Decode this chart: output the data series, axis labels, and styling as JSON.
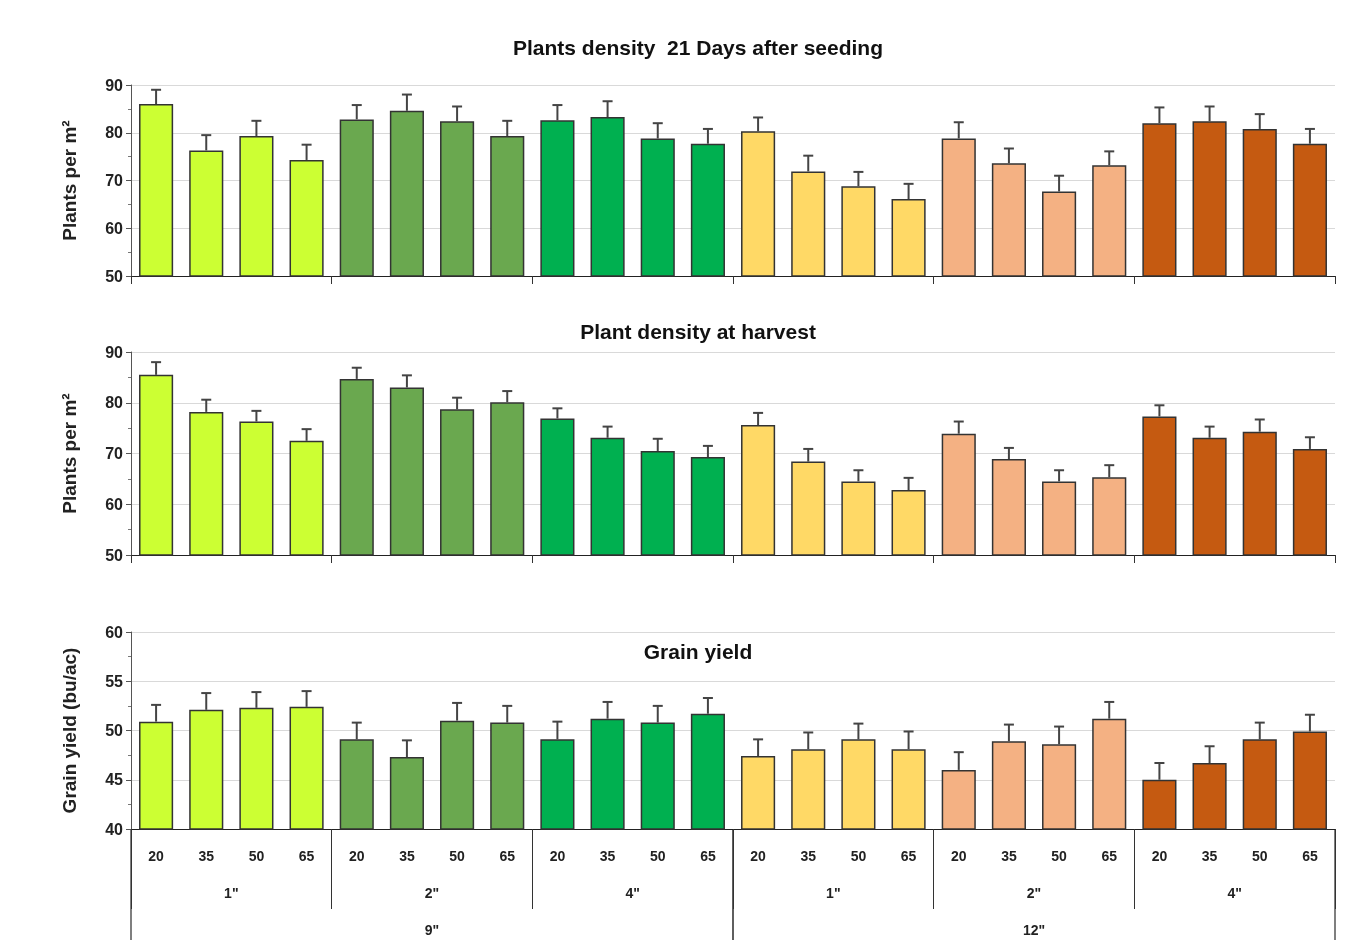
{
  "chart_data": [
    {
      "type": "bar",
      "title": "Plants density  21 Days after seeding",
      "ylabel": "Plants per m²",
      "categories": [
        null,
        null,
        null,
        null,
        null,
        null,
        null,
        null,
        null,
        null,
        null,
        null,
        null,
        null,
        null,
        null,
        null,
        null,
        null,
        null,
        null,
        null,
        null,
        null
      ],
      "values": [
        86,
        76.3,
        79.3,
        74.3,
        82.8,
        84.6,
        82.4,
        79.3,
        82.6,
        83.3,
        78.8,
        77.7,
        80.3,
        71.9,
        68.8,
        66.1,
        78.8,
        73.6,
        67.7,
        73.2,
        82,
        82.4,
        80.8,
        77.7
      ],
      "errors": [
        [
          86,
          89
        ],
        [
          76.3,
          79.5
        ],
        [
          79.3,
          82.5
        ],
        [
          74.3,
          77.5
        ],
        [
          82.8,
          85.8
        ],
        [
          84.6,
          88
        ],
        [
          82.4,
          85.5
        ],
        [
          79.3,
          82.5
        ],
        [
          82.6,
          85.8
        ],
        [
          83.3,
          86.6
        ],
        [
          78.8,
          82
        ],
        [
          77.7,
          80.8
        ],
        [
          80.3,
          83.2
        ],
        [
          71.9,
          75.2
        ],
        [
          68.8,
          71.8
        ],
        [
          66.1,
          69.3
        ],
        [
          78.8,
          82.2
        ],
        [
          73.6,
          76.7
        ],
        [
          67.7,
          71
        ],
        [
          73.2,
          76.1
        ],
        [
          82,
          85.3
        ],
        [
          82.4,
          85.5
        ],
        [
          80.8,
          83.9
        ],
        [
          77.7,
          80.8
        ]
      ],
      "colors": [
        "#ccff33",
        "#ccff33",
        "#ccff33",
        "#ccff33",
        "#6aa84f",
        "#6aa84f",
        "#6aa84f",
        "#6aa84f",
        "#00b050",
        "#00b050",
        "#00b050",
        "#00b050",
        "#ffd966",
        "#ffd966",
        "#ffd966",
        "#ffd966",
        "#f4b183",
        "#f4b183",
        "#f4b183",
        "#f4b183",
        "#c55a11",
        "#c55a11",
        "#c55a11",
        "#c55a11"
      ],
      "ylim": [
        50,
        90
      ],
      "yticks": [
        50,
        60,
        70,
        80,
        90
      ],
      "grid": "y",
      "tick_labels": "y"
    },
    {
      "type": "bar",
      "title": "Plant density at harvest",
      "ylabel": "Plants per m²",
      "categories": [
        null,
        null,
        null,
        null,
        null,
        null,
        null,
        null,
        null,
        null,
        null,
        null,
        null,
        null,
        null,
        null,
        null,
        null,
        null,
        null,
        null,
        null,
        null,
        null
      ],
      "values": [
        85.5,
        78.2,
        76.3,
        72.5,
        84.7,
        83,
        78.7,
        80.1,
        76.9,
        73.1,
        70.5,
        69.3,
        75.6,
        68.4,
        64.5,
        62.8,
        73.9,
        68.9,
        64.5,
        65.3,
        77.3,
        73.1,
        74.3,
        70.9
      ],
      "errors": [
        [
          85.5,
          88
        ],
        [
          78.2,
          80.6
        ],
        [
          76.3,
          78.4
        ],
        [
          72.5,
          74.8
        ],
        [
          84.7,
          86.9
        ],
        [
          83,
          85.4
        ],
        [
          78.7,
          81
        ],
        [
          80.1,
          82.3
        ],
        [
          76.9,
          78.9
        ],
        [
          73.1,
          75.3
        ],
        [
          70.5,
          72.9
        ],
        [
          69.3,
          71.5
        ],
        [
          75.6,
          78
        ],
        [
          68.4,
          70.9
        ],
        [
          64.5,
          66.7
        ],
        [
          62.8,
          65.2
        ],
        [
          73.9,
          76.3
        ],
        [
          68.9,
          71.1
        ],
        [
          64.5,
          66.7
        ],
        [
          65.3,
          67.7
        ],
        [
          77.3,
          79.5
        ],
        [
          73.1,
          75.3
        ],
        [
          74.3,
          76.7
        ],
        [
          70.9,
          73.2
        ]
      ],
      "colors": [
        "#ccff33",
        "#ccff33",
        "#ccff33",
        "#ccff33",
        "#6aa84f",
        "#6aa84f",
        "#6aa84f",
        "#6aa84f",
        "#00b050",
        "#00b050",
        "#00b050",
        "#00b050",
        "#ffd966",
        "#ffd966",
        "#ffd966",
        "#ffd966",
        "#f4b183",
        "#f4b183",
        "#f4b183",
        "#f4b183",
        "#c55a11",
        "#c55a11",
        "#c55a11",
        "#c55a11"
      ],
      "ylim": [
        50,
        90
      ],
      "yticks": [
        50,
        60,
        70,
        80,
        90
      ],
      "grid": "y",
      "tick_labels": "y"
    },
    {
      "type": "bar",
      "title": "Grain yield",
      "ylabel": "Grain yield (bu/ac)",
      "categories": [
        "20",
        "35",
        "50",
        "65",
        "20",
        "35",
        "50",
        "65",
        "20",
        "35",
        "50",
        "65",
        "20",
        "35",
        "50",
        "65",
        "20",
        "35",
        "50",
        "65",
        "20",
        "35",
        "50",
        "65"
      ],
      "values": [
        50.9,
        52.1,
        52.3,
        52.4,
        49.1,
        47.3,
        51,
        50.8,
        49.1,
        51.2,
        50.8,
        51.7,
        47.4,
        48.1,
        49.1,
        48.1,
        46,
        48.9,
        48.6,
        51.2,
        45,
        46.7,
        49.1,
        49.9
      ],
      "errors": [
        [
          50.9,
          52.6
        ],
        [
          52.1,
          53.8
        ],
        [
          52.3,
          53.9
        ],
        [
          52.4,
          54
        ],
        [
          49.1,
          50.8
        ],
        [
          47.3,
          49
        ],
        [
          51,
          52.8
        ],
        [
          50.8,
          52.5
        ],
        [
          49.1,
          50.9
        ],
        [
          51.2,
          52.9
        ],
        [
          50.8,
          52.5
        ],
        [
          51.7,
          53.3
        ],
        [
          47.4,
          49.1
        ],
        [
          48.1,
          49.8
        ],
        [
          49.1,
          50.7
        ],
        [
          48.1,
          49.9
        ],
        [
          46,
          47.8
        ],
        [
          48.9,
          50.6
        ],
        [
          48.6,
          50.4
        ],
        [
          51.2,
          52.9
        ],
        [
          45,
          46.7
        ],
        [
          46.7,
          48.4
        ],
        [
          49.1,
          50.8
        ],
        [
          49.9,
          51.6
        ]
      ],
      "colors": [
        "#ccff33",
        "#ccff33",
        "#ccff33",
        "#ccff33",
        "#6aa84f",
        "#6aa84f",
        "#6aa84f",
        "#6aa84f",
        "#00b050",
        "#00b050",
        "#00b050",
        "#00b050",
        "#ffd966",
        "#ffd966",
        "#ffd966",
        "#ffd966",
        "#f4b183",
        "#f4b183",
        "#f4b183",
        "#f4b183",
        "#c55a11",
        "#c55a11",
        "#c55a11",
        "#c55a11"
      ],
      "annotations": [
        "1\"",
        "2\"",
        "4\"",
        "1\"",
        "2\"",
        "4\"",
        "9\"",
        "12\""
      ],
      "ylim": [
        40,
        60
      ],
      "yticks": [
        40,
        45,
        50,
        55,
        60
      ],
      "grid": "y"
    }
  ]
}
